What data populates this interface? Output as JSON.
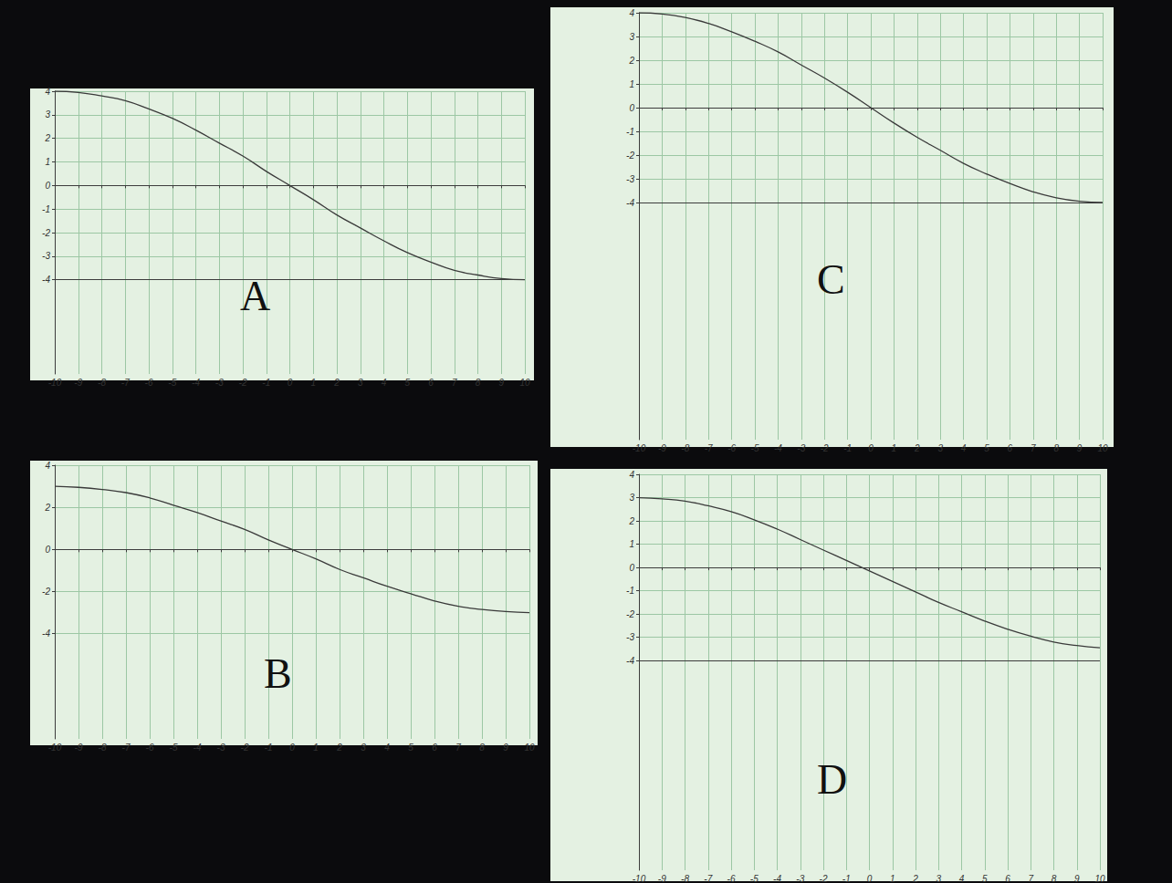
{
  "chart_data": [
    {
      "type": "line",
      "title": "A",
      "color": "#3a3a3a",
      "grid": true,
      "x": [
        -10,
        -9,
        -8,
        -7,
        -6,
        -5,
        -4,
        -3,
        -2,
        -1,
        0,
        1,
        2,
        3,
        4,
        5,
        6,
        7,
        8,
        9,
        10
      ],
      "values": [
        4,
        3.95,
        3.8,
        3.6,
        3.25,
        2.85,
        2.35,
        1.8,
        1.25,
        0.6,
        0,
        -0.6,
        -1.25,
        -1.8,
        -2.35,
        -2.85,
        -3.25,
        -3.6,
        -3.8,
        -3.95,
        -4
      ],
      "xlim": [
        -10,
        10
      ],
      "xticks": [
        -10,
        -9,
        -8,
        -7,
        -6,
        -5,
        -4,
        -3,
        -2,
        -1,
        0,
        1,
        2,
        3,
        4,
        5,
        6,
        7,
        8,
        9,
        10
      ],
      "ylim": [
        -8,
        4
      ],
      "yticks": [
        -4,
        -3,
        -2,
        -1,
        0,
        1,
        2,
        3,
        4
      ],
      "reference_line": -4
    },
    {
      "type": "line",
      "title": "B",
      "color": "#3a3a3a",
      "grid": true,
      "x": [
        -10,
        -9,
        -8,
        -7,
        -6,
        -5,
        -4,
        -3,
        -2,
        -1,
        0,
        1,
        2,
        3,
        4,
        5,
        6,
        7,
        8,
        9,
        10
      ],
      "values": [
        3,
        2.95,
        2.85,
        2.7,
        2.45,
        2.1,
        1.75,
        1.35,
        0.95,
        0.45,
        0,
        -0.45,
        -0.95,
        -1.35,
        -1.75,
        -2.1,
        -2.45,
        -2.7,
        -2.85,
        -2.95,
        -3
      ],
      "xlim": [
        -10,
        10
      ],
      "xticks": [
        -10,
        -9,
        -8,
        -7,
        -6,
        -5,
        -4,
        -3,
        -2,
        -1,
        0,
        1,
        2,
        3,
        4,
        5,
        6,
        7,
        8,
        9,
        10
      ],
      "ylim": [
        -9,
        4
      ],
      "yticks": [
        -4,
        -2,
        0,
        2,
        4
      ]
    },
    {
      "type": "line",
      "title": "C",
      "color": "#3a3a3a",
      "grid": true,
      "x": [
        -10,
        -9,
        -8,
        -7,
        -6,
        -5,
        -4,
        -3,
        -2,
        -1,
        0,
        1,
        2,
        3,
        4,
        5,
        6,
        7,
        8,
        9,
        10
      ],
      "values": [
        4,
        3.95,
        3.8,
        3.55,
        3.2,
        2.8,
        2.35,
        1.8,
        1.25,
        0.65,
        0,
        -0.65,
        -1.25,
        -1.8,
        -2.35,
        -2.8,
        -3.2,
        -3.55,
        -3.8,
        -3.95,
        -4
      ],
      "xlim": [
        -10,
        10
      ],
      "xticks": [
        -10,
        -9,
        -8,
        -7,
        -6,
        -5,
        -4,
        -3,
        -2,
        -1,
        0,
        1,
        2,
        3,
        4,
        5,
        6,
        7,
        8,
        9,
        10
      ],
      "ylim": [
        -14,
        4
      ],
      "yticks": [
        -4,
        -3,
        -2,
        -1,
        0,
        1,
        2,
        3,
        4
      ],
      "reference_line": -4
    },
    {
      "type": "line",
      "title": "D",
      "color": "#3a3a3a",
      "grid": true,
      "x": [
        -10,
        -9,
        -8,
        -7,
        -6,
        -5,
        -4,
        -3,
        -2,
        -1,
        0,
        1,
        2,
        3,
        4,
        5,
        6,
        7,
        8,
        9,
        10
      ],
      "values": [
        3,
        2.95,
        2.85,
        2.65,
        2.4,
        2.05,
        1.65,
        1.2,
        0.75,
        0.3,
        -0.15,
        -0.6,
        -1.05,
        -1.5,
        -1.9,
        -2.3,
        -2.65,
        -2.95,
        -3.2,
        -3.35,
        -3.45
      ],
      "xlim": [
        -10,
        10
      ],
      "xticks": [
        -10,
        -9,
        -8,
        -7,
        -6,
        -5,
        -4,
        -3,
        -2,
        -1,
        0,
        1,
        2,
        3,
        4,
        5,
        6,
        7,
        8,
        9,
        10
      ],
      "ylim": [
        -13,
        4
      ],
      "yticks": [
        -4,
        -3,
        -2,
        -1,
        0,
        1,
        2,
        3,
        4
      ],
      "reference_line": -4
    }
  ]
}
